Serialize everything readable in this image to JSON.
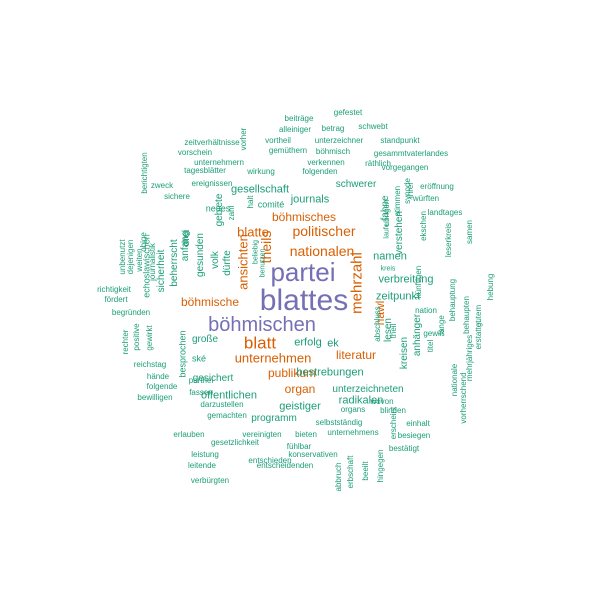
{
  "colors": {
    "purple": "#7570b3",
    "orange": "#d95f02",
    "green": "#1b9e77"
  },
  "words": [
    {
      "text": "blattes",
      "color": "purple",
      "rank": 1
    },
    {
      "text": "partei",
      "color": "purple",
      "rank": 1
    },
    {
      "text": "böhmischen",
      "color": "purple",
      "rank": 2
    },
    {
      "text": "blatt",
      "color": "orange",
      "rank": 3
    },
    {
      "text": "mehrzahl",
      "color": "orange",
      "rank": 3
    },
    {
      "text": "nationalen",
      "color": "orange",
      "rank": 3
    },
    {
      "text": "theils",
      "color": "orange",
      "rank": 3
    },
    {
      "text": "politischer",
      "color": "orange",
      "rank": 3
    },
    {
      "text": "unternehmen",
      "color": "orange",
      "rank": 3
    },
    {
      "text": "blatte",
      "color": "orange",
      "rank": 3
    },
    {
      "text": "ansichten",
      "color": "orange",
      "rank": 3
    },
    {
      "text": "böhmisches",
      "color": "orange",
      "rank": 4
    },
    {
      "text": "böhmische",
      "color": "orange",
      "rank": 4
    },
    {
      "text": "publikum",
      "color": "orange",
      "rank": 4
    },
    {
      "text": "literatur",
      "color": "orange",
      "rank": 4
    },
    {
      "text": "organ",
      "color": "orange",
      "rank": 4
    },
    {
      "text": "hawl",
      "color": "orange",
      "rank": 4
    },
    {
      "text": "gesellschaft",
      "color": "green",
      "rank": 5
    },
    {
      "text": "journals",
      "color": "green",
      "rank": 5
    },
    {
      "text": "schwerer",
      "color": "green",
      "rank": 5
    },
    {
      "text": "namen",
      "color": "green",
      "rank": 5
    },
    {
      "text": "verbreitung",
      "color": "green",
      "rank": 5
    },
    {
      "text": "zeitpunkt",
      "color": "green",
      "rank": 5
    },
    {
      "text": "bestrebungen",
      "color": "green",
      "rank": 5
    },
    {
      "text": "geistiger",
      "color": "green",
      "rank": 5
    },
    {
      "text": "radikalen",
      "color": "green",
      "rank": 5
    },
    {
      "text": "öffentlichen",
      "color": "green",
      "rank": 5
    },
    {
      "text": "erfolg",
      "color": "green",
      "rank": 5
    },
    {
      "text": "ek",
      "color": "green",
      "rank": 5
    },
    {
      "text": "volk",
      "color": "green",
      "rank": 5
    },
    {
      "text": "dürfte",
      "color": "green",
      "rank": 5
    },
    {
      "text": "gesunden",
      "color": "green",
      "rank": 5
    },
    {
      "text": "gebiete",
      "color": "green",
      "rank": 5
    },
    {
      "text": "fahne",
      "color": "green",
      "rank": 5
    },
    {
      "text": "verstehen",
      "color": "green",
      "rank": 5
    },
    {
      "text": "lesen",
      "color": "green",
      "rank": 5
    },
    {
      "text": "kreisen",
      "color": "green",
      "rank": 5
    },
    {
      "text": "anhänger",
      "color": "green",
      "rank": 5
    },
    {
      "text": "unterzeichneten",
      "color": "green",
      "rank": 6
    },
    {
      "text": "programm",
      "color": "green",
      "rank": 6
    },
    {
      "text": "gesichert",
      "color": "green",
      "rank": 6
    },
    {
      "text": "große",
      "color": "green",
      "rank": 6
    },
    {
      "text": "ské",
      "color": "green",
      "rank": 6
    },
    {
      "text": "comité",
      "color": "green",
      "rank": 6
    },
    {
      "text": "neues",
      "color": "green",
      "rank": 6
    },
    {
      "text": "drei",
      "color": "green",
      "rank": 6
    },
    {
      "text": "anfang",
      "color": "green",
      "rank": 6
    },
    {
      "text": "beherrscht",
      "color": "green",
      "rank": 6
    },
    {
      "text": "besprochen",
      "color": "green",
      "rank": 6
    },
    {
      "text": "sicherheit",
      "color": "green",
      "rank": 6
    },
    {
      "text": "echoslawischen",
      "color": "green",
      "rank": 6
    },
    {
      "text": "halt",
      "color": "green",
      "rank": 6
    },
    {
      "text": "beiträge",
      "color": "green",
      "rank": 7
    },
    {
      "text": "gefestet",
      "color": "green",
      "rank": 7
    },
    {
      "text": "alleiniger",
      "color": "green",
      "rank": 7
    },
    {
      "text": "betrag",
      "color": "green",
      "rank": 7
    },
    {
      "text": "schwebt",
      "color": "green",
      "rank": 7
    },
    {
      "text": "vorher",
      "color": "green",
      "rank": 7
    },
    {
      "text": "vortheil",
      "color": "green",
      "rank": 7
    },
    {
      "text": "unterzeichner",
      "color": "green",
      "rank": 7
    },
    {
      "text": "standpunkt",
      "color": "green",
      "rank": 7
    },
    {
      "text": "zeitverhältnisse",
      "color": "green",
      "rank": 7
    },
    {
      "text": "gemüthern",
      "color": "green",
      "rank": 7
    },
    {
      "text": "böhmisch",
      "color": "green",
      "rank": 7
    },
    {
      "text": "gesammtvaterlandes",
      "color": "green",
      "rank": 7
    },
    {
      "text": "vorschein",
      "color": "green",
      "rank": 7
    },
    {
      "text": "unternehmern",
      "color": "green",
      "rank": 7
    },
    {
      "text": "verkennen",
      "color": "green",
      "rank": 7
    },
    {
      "text": "räthlich",
      "color": "green",
      "rank": 7
    },
    {
      "text": "tagesblätter",
      "color": "green",
      "rank": 7
    },
    {
      "text": "wirkung",
      "color": "green",
      "rank": 7
    },
    {
      "text": "folgenden",
      "color": "green",
      "rank": 7
    },
    {
      "text": "vorgegangen",
      "color": "green",
      "rank": 7
    },
    {
      "text": "ereignissen",
      "color": "green",
      "rank": 7
    },
    {
      "text": "eröffnung",
      "color": "green",
      "rank": 7
    },
    {
      "text": "zweck",
      "color": "green",
      "rank": 7
    },
    {
      "text": "sichere",
      "color": "green",
      "rank": 7
    },
    {
      "text": "würften",
      "color": "green",
      "rank": 7
    },
    {
      "text": "landtages",
      "color": "green",
      "rank": 7
    },
    {
      "text": "berichtigten",
      "color": "green",
      "rank": 7
    },
    {
      "text": "ihrer",
      "color": "green",
      "rank": 7
    },
    {
      "text": "zahl",
      "color": "green",
      "rank": 7
    },
    {
      "text": "synode",
      "color": "green",
      "rank": 7
    },
    {
      "text": "stimmen",
      "color": "green",
      "rank": 7
    },
    {
      "text": "ubrigen",
      "color": "green",
      "rank": 7
    },
    {
      "text": "beliebig",
      "color": "green",
      "rank": 7
    },
    {
      "text": "ekschen",
      "color": "green",
      "rank": 7
    },
    {
      "text": "leserkreis",
      "color": "green",
      "rank": 7
    },
    {
      "text": "samen",
      "color": "green",
      "rank": 7
    },
    {
      "text": "laufe",
      "color": "green",
      "rank": 7
    },
    {
      "text": "benutzen",
      "color": "green",
      "rank": 7
    },
    {
      "text": "unbenutzt",
      "color": "green",
      "rank": 7
    },
    {
      "text": "dejenigen",
      "color": "green",
      "rank": 7
    },
    {
      "text": "obige",
      "color": "green",
      "rank": 7
    },
    {
      "text": "weiten",
      "color": "green",
      "rank": 7
    },
    {
      "text": "journalistik",
      "color": "green",
      "rank": 7
    },
    {
      "text": "kreis",
      "color": "green",
      "rank": 7
    },
    {
      "text": "richtigkeit",
      "color": "green",
      "rank": 7
    },
    {
      "text": "fördert",
      "color": "green",
      "rank": 7
    },
    {
      "text": "begründen",
      "color": "green",
      "rank": 7
    },
    {
      "text": "rechter",
      "color": "green",
      "rank": 7
    },
    {
      "text": "positive",
      "color": "green",
      "rank": 7
    },
    {
      "text": "gewirkt",
      "color": "green",
      "rank": 7
    },
    {
      "text": "reichstag",
      "color": "green",
      "rank": 7
    },
    {
      "text": "hände",
      "color": "green",
      "rank": 7
    },
    {
      "text": "folgende",
      "color": "green",
      "rank": 7
    },
    {
      "text": "bewilligen",
      "color": "green",
      "rank": 7
    },
    {
      "text": "parthei",
      "color": "green",
      "rank": 7
    },
    {
      "text": "fassen",
      "color": "green",
      "rank": 7
    },
    {
      "text": "darzustellen",
      "color": "green",
      "rank": 7
    },
    {
      "text": "gemachten",
      "color": "green",
      "rank": 7
    },
    {
      "text": "erlauben",
      "color": "green",
      "rank": 7
    },
    {
      "text": "gesetzlichkeit",
      "color": "green",
      "rank": 7
    },
    {
      "text": "leistung",
      "color": "green",
      "rank": 7
    },
    {
      "text": "leitende",
      "color": "green",
      "rank": 7
    },
    {
      "text": "verbürgten",
      "color": "green",
      "rank": 7
    },
    {
      "text": "entschieden",
      "color": "green",
      "rank": 7
    },
    {
      "text": "entscheidenden",
      "color": "green",
      "rank": 7
    },
    {
      "text": "vereinigten",
      "color": "green",
      "rank": 7
    },
    {
      "text": "bieten",
      "color": "green",
      "rank": 7
    },
    {
      "text": "fühlbar",
      "color": "green",
      "rank": 7
    },
    {
      "text": "konservativen",
      "color": "green",
      "rank": 7
    },
    {
      "text": "selbstständig",
      "color": "green",
      "rank": 7
    },
    {
      "text": "unternehmens",
      "color": "green",
      "rank": 7
    },
    {
      "text": "organs",
      "color": "green",
      "rank": 7
    },
    {
      "text": "wovon",
      "color": "green",
      "rank": 7
    },
    {
      "text": "blinden",
      "color": "green",
      "rank": 7
    },
    {
      "text": "einhalt",
      "color": "green",
      "rank": 7
    },
    {
      "text": "besiegen",
      "color": "green",
      "rank": 7
    },
    {
      "text": "bestätigt",
      "color": "green",
      "rank": 7
    },
    {
      "text": "abbruch",
      "color": "green",
      "rank": 7
    },
    {
      "text": "erbschaft",
      "color": "green",
      "rank": 7
    },
    {
      "text": "beeilt",
      "color": "green",
      "rank": 7
    },
    {
      "text": "hingegen",
      "color": "green",
      "rank": 7
    },
    {
      "text": "erscheint",
      "color": "green",
      "rank": 7
    },
    {
      "text": "abschluss",
      "color": "green",
      "rank": 7
    },
    {
      "text": "theil",
      "color": "green",
      "rank": 7
    },
    {
      "text": "nation",
      "color": "green",
      "rank": 7
    },
    {
      "text": "gewiß",
      "color": "green",
      "rank": 7
    },
    {
      "text": "titel",
      "color": "green",
      "rank": 7
    },
    {
      "text": "lange",
      "color": "green",
      "rank": 7
    },
    {
      "text": "behauptung",
      "color": "green",
      "rank": 7
    },
    {
      "text": "nationale",
      "color": "green",
      "rank": 7
    },
    {
      "text": "vorherrschend",
      "color": "green",
      "rank": 7
    },
    {
      "text": "mehrjähriges",
      "color": "green",
      "rank": 7
    },
    {
      "text": "behaupten",
      "color": "green",
      "rank": 7
    },
    {
      "text": "gutem",
      "color": "green",
      "rank": 7
    },
    {
      "text": "erstattet",
      "color": "green",
      "rank": 7
    },
    {
      "text": "hebung",
      "color": "green",
      "rank": 7
    },
    {
      "text": "künftigen",
      "color": "green",
      "rank": 7
    },
    {
      "text": "bedeutung",
      "color": "green",
      "rank": 7
    }
  ]
}
